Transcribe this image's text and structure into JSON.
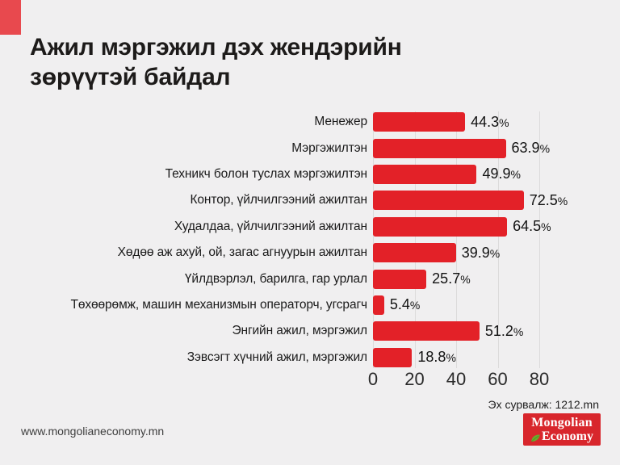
{
  "page": {
    "background_color": "#f0eff0",
    "accent_square_color": "#e8494e"
  },
  "header": {
    "title": "Ажил мэргэжил дэх жендэрийн\nзөрүүтэй байдал"
  },
  "chart_data": {
    "type": "bar",
    "orientation": "horizontal",
    "title": "Ажил мэргэжил дэх жендэрийн зөрүүтэй байдал",
    "categories": [
      "Менежер",
      "Мэргэжилтэн",
      "Техникч болон туслах мэргэжилтэн",
      "Контор, үйлчилгээний ажилтан",
      "Худалдаа, үйлчилгээний ажилтан",
      "Хөдөө аж ахуй, ой, загас агнуурын ажилтан",
      "Үйлдвэрлэл, барилга, гар урлал",
      "Төхөөрөмж, машин механизмын операторч, угсрагч",
      "Энгийн ажил, мэргэжил",
      "Зэвсэгт хүчний ажил, мэргэжил"
    ],
    "values": [
      44.3,
      63.9,
      49.9,
      72.5,
      64.5,
      39.9,
      25.7,
      5.4,
      51.2,
      18.8
    ],
    "value_suffix": "%",
    "bar_color": "#e32128",
    "xlabel": "",
    "ylabel": "",
    "xlim": [
      0,
      80
    ],
    "x_ticks": [
      0,
      20,
      40,
      60,
      80
    ],
    "grid": true,
    "legend": "none"
  },
  "footer": {
    "source_label": "Эх сурвалж: 1212.mn",
    "website": "www.mongolianeconomy.mn",
    "logo": {
      "line1": "Mongolian",
      "line2": "Economy",
      "bg_color": "#d8262c",
      "leaf_color": "#6aa92d"
    }
  }
}
